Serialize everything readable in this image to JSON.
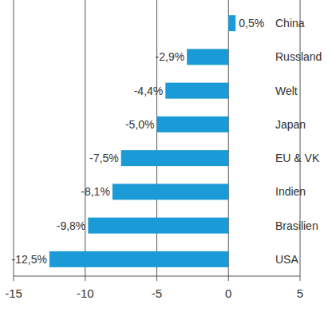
{
  "chart_data": {
    "type": "bar",
    "orientation": "horizontal",
    "categories": [
      "China",
      "Russland",
      "Welt",
      "Japan",
      "EU & VK",
      "Indien",
      "Brasilien",
      "USA"
    ],
    "values": [
      0.5,
      -2.9,
      -4.4,
      -5.0,
      -7.5,
      -8.1,
      -9.8,
      -12.5
    ],
    "value_labels": [
      "0,5%",
      "-2,9%",
      "-4,4%",
      "-5,0%",
      "-7,5%",
      "-8,1%",
      "-9,8%",
      "-12,5%"
    ],
    "data_labels": true,
    "color": "#1a9ad6",
    "xlim": [
      -15,
      5
    ],
    "xticks": [
      -15,
      -10,
      -5,
      0,
      5
    ],
    "grid": true
  }
}
